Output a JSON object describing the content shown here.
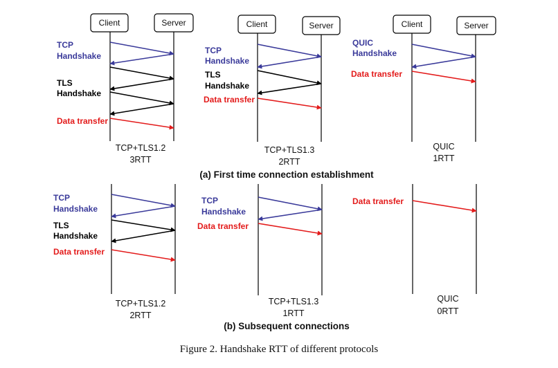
{
  "colors": {
    "tcp": "#3a3a9a",
    "tls": "#000000",
    "data": "#e31b1b",
    "quic": "#3a3a9a"
  },
  "node_labels": {
    "client": "Client",
    "server": "Server"
  },
  "phase_labels": {
    "tcp_line1": "TCP",
    "handshake": "Handshake",
    "tls_line1": "TLS",
    "quic_line1": "QUIC",
    "data_transfer": "Data transfer"
  },
  "sections": {
    "a": "(a) First time connection establishment",
    "b": "(b) Subsequent connections"
  },
  "panels": {
    "a1": {
      "protocol": "TCP+TLS1.2",
      "rtt": "3RTT"
    },
    "a2": {
      "protocol": "TCP+TLS1.3",
      "rtt": "2RTT"
    },
    "a3": {
      "protocol": "QUIC",
      "rtt": "1RTT"
    },
    "b1": {
      "protocol": "TCP+TLS1.2",
      "rtt": "2RTT"
    },
    "b2": {
      "protocol": "TCP+TLS1.3",
      "rtt": "1RTT"
    },
    "b3": {
      "protocol": "QUIC",
      "rtt": "0RTT"
    }
  },
  "figure_caption": "Figure 2. Handshake RTT of different protocols"
}
